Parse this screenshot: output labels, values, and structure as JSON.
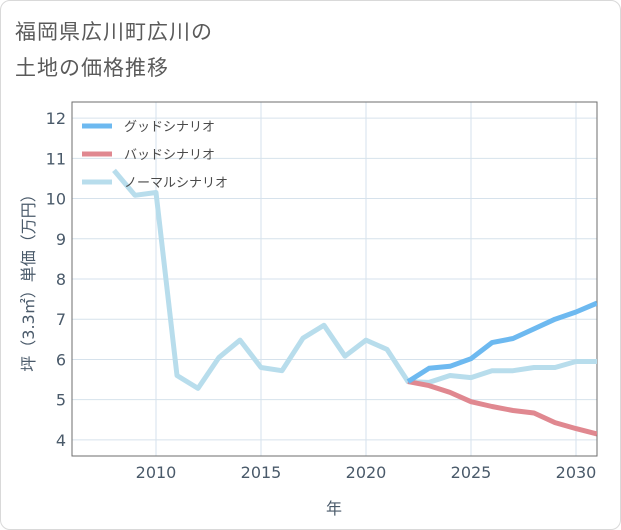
{
  "chart_data": {
    "type": "line",
    "title_line1": "福岡県広川町広川の",
    "title_line2": "土地の価格推移",
    "xlabel": "年",
    "ylabel": "坪（3.3㎡）単価（万円）",
    "xlim": [
      2006,
      2031
    ],
    "ylim": [
      3.6,
      12.4
    ],
    "xticks": [
      2010,
      2015,
      2020,
      2025,
      2030
    ],
    "yticks": [
      4,
      5,
      6,
      7,
      8,
      9,
      10,
      11,
      12
    ],
    "legend_position": "top-left",
    "series": [
      {
        "name": "グッドシナリオ",
        "color": "#6db9f0",
        "x": [
          2022,
          2023,
          2024,
          2025,
          2026,
          2027,
          2028,
          2029,
          2030,
          2031
        ],
        "y": [
          5.45,
          5.78,
          5.83,
          6.02,
          6.42,
          6.52,
          6.76,
          7.0,
          7.18,
          7.4
        ]
      },
      {
        "name": "バッドシナリオ",
        "color": "#e08890",
        "x": [
          2022,
          2023,
          2024,
          2025,
          2026,
          2027,
          2028,
          2029,
          2030,
          2031
        ],
        "y": [
          5.45,
          5.35,
          5.18,
          4.95,
          4.83,
          4.73,
          4.67,
          4.43,
          4.28,
          4.15
        ]
      },
      {
        "name": "ノーマルシナリオ",
        "color": "#b8ddec",
        "x": [
          2008,
          2009,
          2010,
          2011,
          2012,
          2013,
          2014,
          2015,
          2016,
          2017,
          2018,
          2019,
          2020,
          2021,
          2022,
          2023,
          2024,
          2025,
          2026,
          2027,
          2028,
          2029,
          2030,
          2031
        ],
        "y": [
          10.7,
          10.08,
          10.15,
          5.6,
          5.28,
          6.05,
          6.48,
          5.8,
          5.72,
          6.53,
          6.85,
          6.08,
          6.48,
          6.25,
          5.45,
          5.43,
          5.6,
          5.55,
          5.72,
          5.72,
          5.8,
          5.8,
          5.95,
          5.95
        ]
      }
    ]
  }
}
